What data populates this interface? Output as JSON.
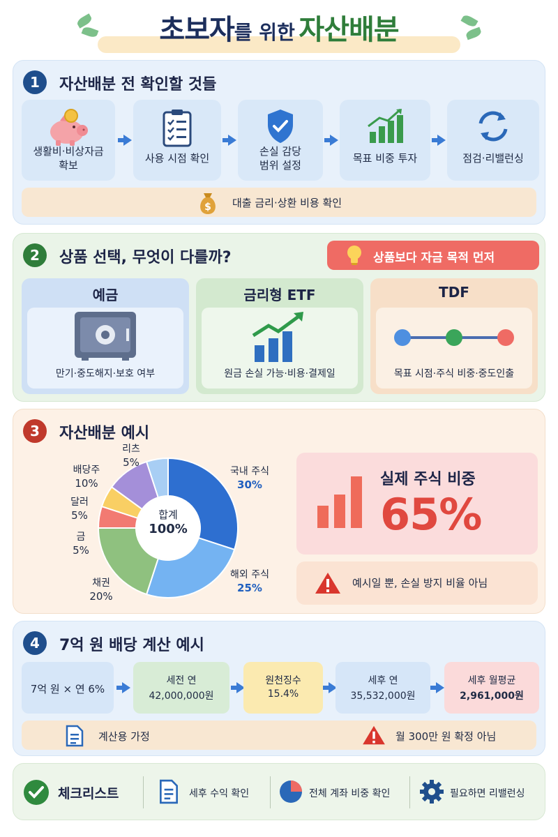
{
  "header": {
    "title_part1": "초보자",
    "title_part2": "를 위한",
    "title_part3": "자산배분"
  },
  "section1": {
    "number": "1",
    "title": "자산배분 전 확인할 것들",
    "steps": [
      {
        "label_line1": "생활비·비상자금",
        "label_line2": "확보",
        "icon": "piggy-bank-icon"
      },
      {
        "label_line1": "사용 시점 확인",
        "label_line2": "",
        "icon": "checklist-icon"
      },
      {
        "label_line1": "손실 감당",
        "label_line2": "범위 설정",
        "icon": "shield-icon"
      },
      {
        "label_line1": "목표 비중 투자",
        "label_line2": "",
        "icon": "bar-chart-icon"
      },
      {
        "label_line1": "점검·리밸런싱",
        "label_line2": "",
        "icon": "refresh-icon"
      }
    ],
    "bottom_note": "대출 금리·상환 비용 확인",
    "bottom_icon": "money-bag-icon"
  },
  "section2": {
    "number": "2",
    "title": "상품 선택, 무엇이 다를까?",
    "tip": "상품보다 자금 목적 먼저",
    "tip_icon": "lightbulb-icon",
    "cards": [
      {
        "title": "예금",
        "desc": "만기·중도해지·보호 여부",
        "icon": "safe-icon"
      },
      {
        "title": "금리형 ETF",
        "desc": "원금 손실 가능·비용·결제일",
        "icon": "growth-chart-icon"
      },
      {
        "title": "TDF",
        "desc": "목표 시점·주식 비중·중도인출",
        "icon": "timeline-icon"
      }
    ]
  },
  "section3": {
    "number": "3",
    "title": "자산배분 예시",
    "center_line1": "합계",
    "center_line2": "100%",
    "stock_label": "실제 주식 비중",
    "stock_value": "65%",
    "warning": "예시일 뿐, 손실 방지 비율 아님",
    "warning_icon": "warning-icon",
    "stock_icon": "bar-chart-icon"
  },
  "chart_data": {
    "type": "pie",
    "categories": [
      "국내 주식",
      "해외 주식",
      "채권",
      "금",
      "달러",
      "배당주",
      "리츠"
    ],
    "values": [
      30,
      25,
      20,
      5,
      5,
      10,
      5
    ],
    "labels": [
      "30%",
      "25%",
      "20%",
      "5%",
      "5%",
      "10%",
      "5%"
    ],
    "colors": [
      "#2e6fd0",
      "#74b3f2",
      "#8fc17f",
      "#f27a72",
      "#f9cf64",
      "#a48fd9",
      "#a8cef4"
    ],
    "donut": true
  },
  "section4": {
    "number": "4",
    "title": "7억 원 배당 계산 예시",
    "steps": [
      {
        "line1": "7억 원 × 연 6%",
        "line2": ""
      },
      {
        "line1": "세전 연",
        "line2": "42,000,000원"
      },
      {
        "line1": "원천징수",
        "line2": "15.4%"
      },
      {
        "line1": "세후 연",
        "line2": "35,532,000원"
      },
      {
        "line1": "세후 월평균",
        "line2": "2,961,000원"
      }
    ],
    "assumption": "계산용 가정",
    "assumption_icon": "document-icon",
    "caution": "월 300만 원 확정 아님",
    "caution_icon": "warning-icon"
  },
  "checklist": {
    "title": "체크리스트",
    "items": [
      {
        "label": "세후 수익 확인",
        "icon": "document-icon"
      },
      {
        "label": "전체 계좌 비중 확인",
        "icon": "pie-chart-icon"
      },
      {
        "label": "필요하면 리밸런싱",
        "icon": "gear-icon"
      }
    ]
  }
}
